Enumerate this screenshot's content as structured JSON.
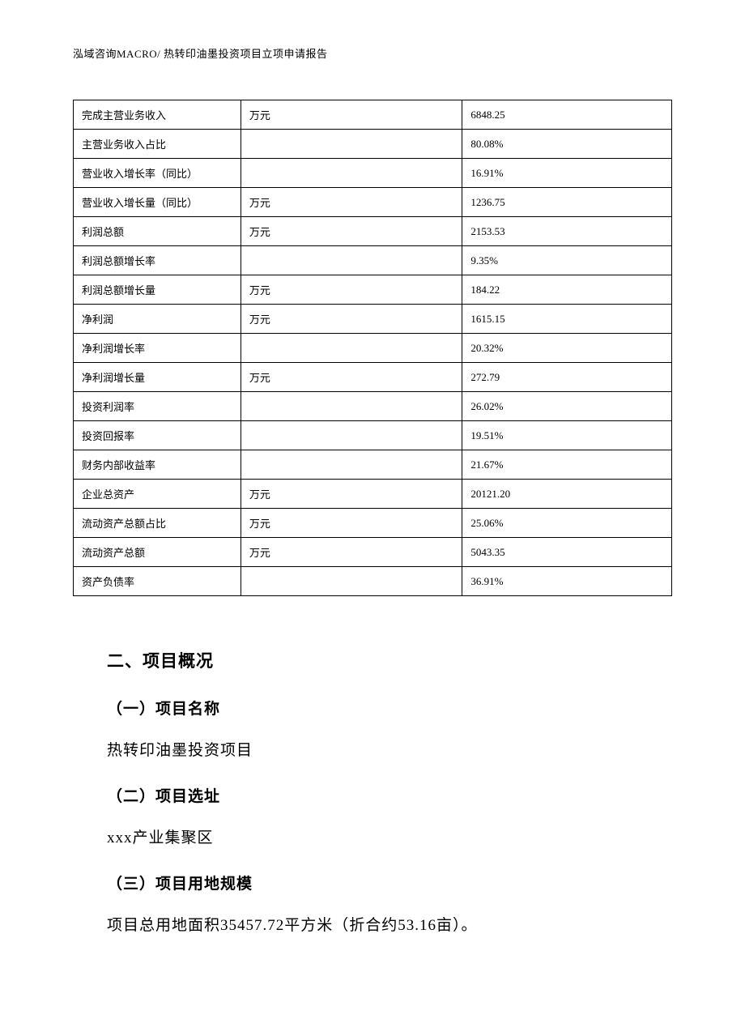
{
  "header": {
    "text": "泓域咨询MACRO/   热转印油墨投资项目立项申请报告"
  },
  "table": {
    "columns": [
      "name",
      "unit",
      "value"
    ],
    "rows": [
      {
        "name": "完成主营业务收入",
        "unit": "万元",
        "value": "6848.25"
      },
      {
        "name": "主营业务收入占比",
        "unit": "",
        "value": "80.08%"
      },
      {
        "name": "营业收入增长率（同比）",
        "unit": "",
        "value": "16.91%"
      },
      {
        "name": "营业收入增长量（同比）",
        "unit": "万元",
        "value": "1236.75"
      },
      {
        "name": "利润总额",
        "unit": "万元",
        "value": "2153.53"
      },
      {
        "name": "利润总额增长率",
        "unit": "",
        "value": "9.35%"
      },
      {
        "name": "利润总额增长量",
        "unit": "万元",
        "value": "184.22"
      },
      {
        "name": "净利润",
        "unit": "万元",
        "value": "1615.15"
      },
      {
        "name": "净利润增长率",
        "unit": "",
        "value": "20.32%"
      },
      {
        "name": "净利润增长量",
        "unit": "万元",
        "value": "272.79"
      },
      {
        "name": "投资利润率",
        "unit": "",
        "value": "26.02%"
      },
      {
        "name": "投资回报率",
        "unit": "",
        "value": "19.51%"
      },
      {
        "name": "财务内部收益率",
        "unit": "",
        "value": "21.67%"
      },
      {
        "name": "企业总资产",
        "unit": "万元",
        "value": "20121.20"
      },
      {
        "name": "流动资产总额占比",
        "unit": "万元",
        "value": "25.06%"
      },
      {
        "name": "流动资产总额",
        "unit": "万元",
        "value": "5043.35"
      },
      {
        "name": "资产负债率",
        "unit": "",
        "value": "36.91%"
      }
    ]
  },
  "sections": {
    "section2_heading": "二、项目概况",
    "sub1_heading": "（一）项目名称",
    "sub1_text": "热转印油墨投资项目",
    "sub2_heading": "（二）项目选址",
    "sub2_text": "xxx产业集聚区",
    "sub3_heading": "（三）项目用地规模",
    "sub3_text": "项目总用地面积35457.72平方米（折合约53.16亩）。"
  }
}
